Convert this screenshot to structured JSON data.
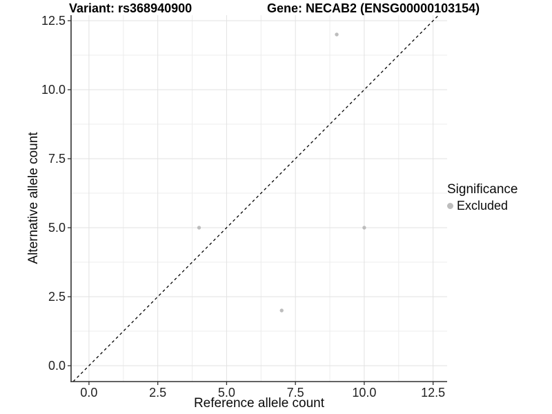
{
  "title": {
    "variant": "Variant: rs368940900",
    "gene": "Gene: NECAB2 (ENSG00000103154)"
  },
  "axes": {
    "x_label": "Reference allele count",
    "y_label": "Alternative allele count"
  },
  "legend": {
    "title": "Significance",
    "items": [
      {
        "label": "Excluded",
        "color": "#bdbdbd"
      }
    ]
  },
  "colors": {
    "background": "#ffffff",
    "grid_major": "#e2e2e2",
    "grid_minor": "#ededed",
    "axis": "#2f2f2f",
    "tick_text": "#1f1f1f",
    "identity_line": "#000000",
    "point": "#bdbdbd"
  },
  "chart_data": {
    "type": "scatter",
    "title": "Variant: rs368940900        Gene: NECAB2 (ENSG00000103154)",
    "xlabel": "Reference allele count",
    "ylabel": "Alternative allele count",
    "x_ticks": [
      0.0,
      2.5,
      5.0,
      7.5,
      10.0,
      12.5
    ],
    "y_ticks": [
      0.0,
      2.5,
      5.0,
      7.5,
      10.0,
      12.5
    ],
    "xlim": [
      -0.65,
      13.01
    ],
    "ylim": [
      -0.575,
      12.7
    ],
    "grid": true,
    "legend_position": "right",
    "identity_line": {
      "equation": "y = x",
      "style": "dashed",
      "color": "#000000"
    },
    "series": [
      {
        "name": "Excluded",
        "color": "#bdbdbd",
        "radius": 2.7,
        "points": [
          [
            9,
            12
          ],
          [
            4,
            5
          ],
          [
            10,
            5
          ],
          [
            7,
            2
          ]
        ]
      }
    ]
  }
}
